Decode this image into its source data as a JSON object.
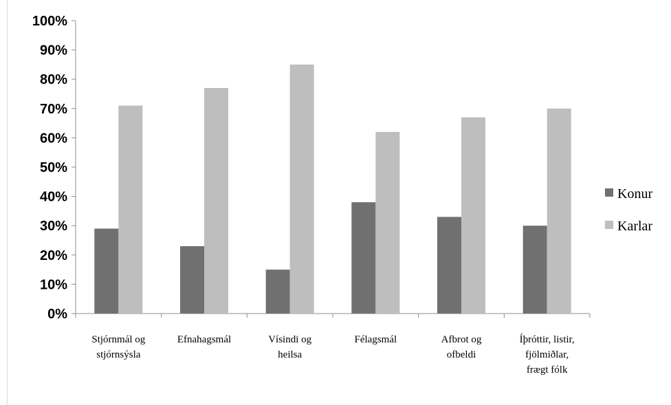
{
  "chart_data": {
    "type": "bar",
    "title": "",
    "xlabel": "",
    "ylabel": "",
    "ylim": [
      0,
      100
    ],
    "yticks": [
      "0%",
      "10%",
      "20%",
      "30%",
      "40%",
      "50%",
      "60%",
      "70%",
      "80%",
      "90%",
      "100%"
    ],
    "categories": [
      [
        "Stjórnmál og",
        "stjórnsýsla"
      ],
      [
        "Efnahagsmál"
      ],
      [
        "Vísindi og",
        "heilsa"
      ],
      [
        "Félagsmál"
      ],
      [
        "Afbrot og",
        "ofbeldi"
      ],
      [
        "Íþróttir, listir,",
        "fjölmiðlar,",
        "frægt fólk"
      ]
    ],
    "series": [
      {
        "name": "Konur",
        "color": "#707070",
        "values": [
          29,
          23,
          15,
          38,
          33,
          30
        ]
      },
      {
        "name": "Karlar",
        "color": "#bebebe",
        "values": [
          71,
          77,
          85,
          62,
          67,
          70
        ]
      }
    ],
    "grid": false,
    "legend_position": "right"
  }
}
